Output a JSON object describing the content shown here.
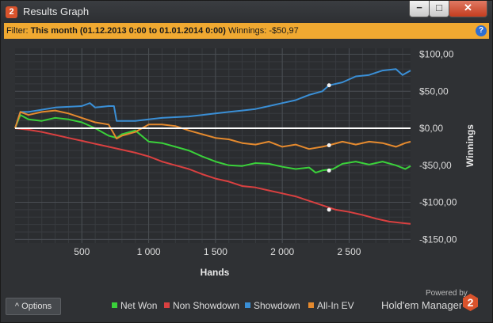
{
  "window": {
    "title": "Results Graph",
    "app_icon": "2",
    "buttons": {
      "minimize": "−",
      "maximize": "□",
      "close": "✕"
    }
  },
  "filter": {
    "label": "Filter:",
    "period": "This month (01.12.2013 0:00 to 01.01.2014 0:00)",
    "winnings": "Winnings: -$50,97",
    "help": "?"
  },
  "colors": {
    "net_won": "#3ad13a",
    "non_showdown": "#d94040",
    "showdown": "#3a8fd6",
    "allin_ev": "#e58a2e",
    "filter_bar": "#f0a931"
  },
  "chart_data": {
    "type": "line",
    "title": "",
    "xlabel": "Hands",
    "ylabel": "Winnings",
    "x_ticks": [
      {
        "value": 500,
        "label": "500"
      },
      {
        "value": 1000,
        "label": "1 000"
      },
      {
        "value": 1500,
        "label": "1 500"
      },
      {
        "value": 2000,
        "label": "2 000"
      },
      {
        "value": 2500,
        "label": "2 500"
      }
    ],
    "y_ticks": [
      {
        "value": 100,
        "label": "$100,00"
      },
      {
        "value": 50,
        "label": "$50,00"
      },
      {
        "value": 0,
        "label": "$0,00"
      },
      {
        "value": -50,
        "label": "-$50,00"
      },
      {
        "value": -100,
        "label": "-$100,00"
      },
      {
        "value": -150,
        "label": "-$150,00"
      }
    ],
    "xlim": [
      0,
      2960
    ],
    "ylim": [
      -155,
      108
    ],
    "grid": true,
    "legend_position": "bottom",
    "series": [
      {
        "name": "Net Won",
        "color": "#3ad13a",
        "points": [
          [
            0,
            0
          ],
          [
            40,
            18
          ],
          [
            100,
            12
          ],
          [
            200,
            10
          ],
          [
            300,
            14
          ],
          [
            400,
            12
          ],
          [
            500,
            8
          ],
          [
            600,
            0
          ],
          [
            700,
            -10
          ],
          [
            760,
            -13
          ],
          [
            800,
            -8
          ],
          [
            900,
            -3
          ],
          [
            1000,
            -18
          ],
          [
            1100,
            -20
          ],
          [
            1200,
            -25
          ],
          [
            1300,
            -30
          ],
          [
            1400,
            -38
          ],
          [
            1500,
            -45
          ],
          [
            1600,
            -50
          ],
          [
            1700,
            -51
          ],
          [
            1800,
            -47
          ],
          [
            1900,
            -48
          ],
          [
            2000,
            -52
          ],
          [
            2100,
            -55
          ],
          [
            2200,
            -53
          ],
          [
            2250,
            -60
          ],
          [
            2300,
            -57
          ],
          [
            2380,
            -55
          ],
          [
            2450,
            -48
          ],
          [
            2550,
            -45
          ],
          [
            2650,
            -49
          ],
          [
            2750,
            -45
          ],
          [
            2850,
            -50
          ],
          [
            2920,
            -55
          ],
          [
            2960,
            -51
          ]
        ],
        "dots": [
          [
            2350,
            -57
          ]
        ]
      },
      {
        "name": "Non Showdown",
        "color": "#d94040",
        "points": [
          [
            0,
            0
          ],
          [
            100,
            -2
          ],
          [
            200,
            -5
          ],
          [
            300,
            -9
          ],
          [
            400,
            -13
          ],
          [
            500,
            -17
          ],
          [
            600,
            -21
          ],
          [
            700,
            -25
          ],
          [
            800,
            -29
          ],
          [
            900,
            -33
          ],
          [
            1000,
            -38
          ],
          [
            1100,
            -45
          ],
          [
            1200,
            -50
          ],
          [
            1300,
            -55
          ],
          [
            1400,
            -62
          ],
          [
            1500,
            -68
          ],
          [
            1600,
            -72
          ],
          [
            1700,
            -78
          ],
          [
            1800,
            -80
          ],
          [
            1900,
            -84
          ],
          [
            2000,
            -88
          ],
          [
            2100,
            -92
          ],
          [
            2200,
            -98
          ],
          [
            2300,
            -104
          ],
          [
            2400,
            -110
          ],
          [
            2500,
            -113
          ],
          [
            2600,
            -117
          ],
          [
            2700,
            -122
          ],
          [
            2800,
            -126
          ],
          [
            2900,
            -128
          ],
          [
            2960,
            -129
          ]
        ],
        "dots": [
          [
            2350,
            -110
          ]
        ]
      },
      {
        "name": "Showdown",
        "color": "#3a8fd6",
        "points": [
          [
            0,
            0
          ],
          [
            40,
            22
          ],
          [
            100,
            22
          ],
          [
            200,
            25
          ],
          [
            300,
            28
          ],
          [
            500,
            30
          ],
          [
            560,
            34
          ],
          [
            600,
            28
          ],
          [
            700,
            30
          ],
          [
            740,
            30
          ],
          [
            760,
            10
          ],
          [
            800,
            10
          ],
          [
            900,
            10
          ],
          [
            1000,
            12
          ],
          [
            1100,
            14
          ],
          [
            1200,
            15
          ],
          [
            1300,
            16
          ],
          [
            1400,
            18
          ],
          [
            1500,
            20
          ],
          [
            1600,
            22
          ],
          [
            1700,
            24
          ],
          [
            1800,
            26
          ],
          [
            1900,
            30
          ],
          [
            2000,
            34
          ],
          [
            2100,
            38
          ],
          [
            2200,
            45
          ],
          [
            2300,
            50
          ],
          [
            2350,
            58
          ],
          [
            2450,
            62
          ],
          [
            2550,
            70
          ],
          [
            2650,
            72
          ],
          [
            2750,
            78
          ],
          [
            2850,
            80
          ],
          [
            2900,
            72
          ],
          [
            2960,
            78
          ]
        ],
        "dots": [
          [
            2350,
            58
          ]
        ]
      },
      {
        "name": "All-In EV",
        "color": "#e58a2e",
        "points": [
          [
            0,
            0
          ],
          [
            40,
            22
          ],
          [
            100,
            18
          ],
          [
            200,
            22
          ],
          [
            300,
            24
          ],
          [
            400,
            20
          ],
          [
            500,
            14
          ],
          [
            600,
            8
          ],
          [
            700,
            5
          ],
          [
            760,
            -14
          ],
          [
            800,
            -10
          ],
          [
            900,
            -5
          ],
          [
            1000,
            5
          ],
          [
            1100,
            5
          ],
          [
            1200,
            3
          ],
          [
            1300,
            -3
          ],
          [
            1400,
            -8
          ],
          [
            1500,
            -13
          ],
          [
            1600,
            -15
          ],
          [
            1700,
            -20
          ],
          [
            1800,
            -22
          ],
          [
            1900,
            -18
          ],
          [
            2000,
            -25
          ],
          [
            2100,
            -22
          ],
          [
            2200,
            -28
          ],
          [
            2300,
            -25
          ],
          [
            2350,
            -23
          ],
          [
            2450,
            -18
          ],
          [
            2550,
            -22
          ],
          [
            2650,
            -18
          ],
          [
            2750,
            -20
          ],
          [
            2850,
            -25
          ],
          [
            2920,
            -20
          ],
          [
            2960,
            -18
          ]
        ],
        "dots": [
          [
            2350,
            -23
          ]
        ]
      }
    ]
  },
  "bottom": {
    "options_label": "Options",
    "options_icon": "^",
    "legend": [
      {
        "label": "Net Won",
        "color": "#3ad13a"
      },
      {
        "label": "Non Showdown",
        "color": "#d94040"
      },
      {
        "label": "Showdown",
        "color": "#3a8fd6"
      },
      {
        "label": "All-In EV",
        "color": "#e58a2e"
      }
    ],
    "powered_by": "Powered by",
    "brand": "Hold'em Manager",
    "brand_logo": "2"
  }
}
